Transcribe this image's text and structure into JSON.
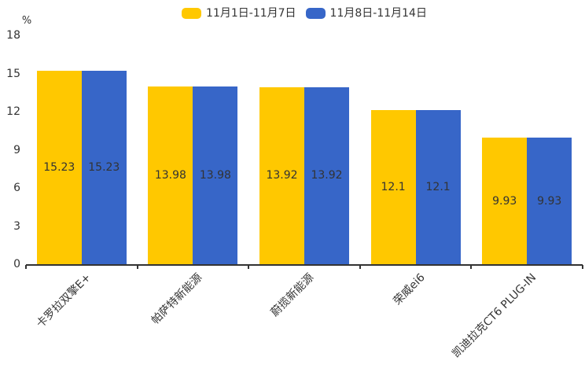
{
  "chart": {
    "unit_label": "%",
    "legend": [
      {
        "label": "11月1日-11月7日",
        "color": "#FFC800"
      },
      {
        "label": "11月8日-11月14日",
        "color": "#3766C8"
      }
    ]
  },
  "chart_data": {
    "type": "bar",
    "title": "",
    "xlabel": "",
    "ylabel": "%",
    "categories": [
      "卡罗拉双擎E+",
      "帕萨特新能源",
      "蔚揽新能源",
      "荣威ei6",
      "凯迪拉克CT6 PLUG-IN"
    ],
    "series": [
      {
        "name": "11月1日-11月7日",
        "color": "#FFC800",
        "values": [
          15.23,
          13.98,
          13.92,
          12.1,
          9.93
        ]
      },
      {
        "name": "11月8日-11月14日",
        "color": "#3766C8",
        "values": [
          15.23,
          13.98,
          13.92,
          12.1,
          9.93
        ]
      }
    ],
    "value_labels": [
      [
        "15.23",
        "13.98",
        "13.92",
        "12.1",
        "9.93"
      ],
      [
        "15.23",
        "13.98",
        "13.92",
        "12.1",
        "9.93"
      ]
    ],
    "ylim": [
      0,
      18
    ],
    "yticks": [
      "0",
      "3",
      "6",
      "9",
      "12",
      "15",
      "18"
    ],
    "grid": false,
    "legend_position": "top"
  }
}
